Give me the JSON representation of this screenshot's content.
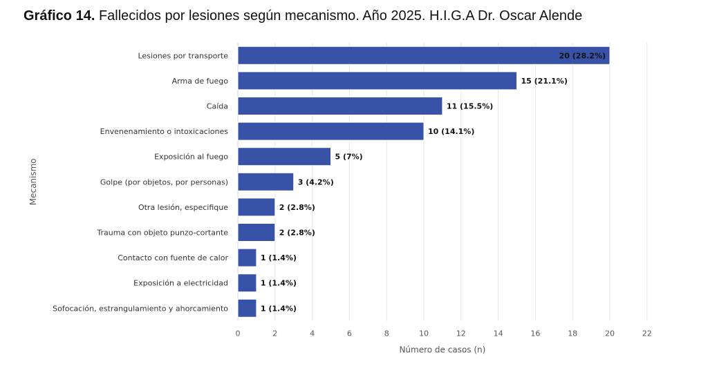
{
  "title_bold": "Gráfico 14.",
  "title_rest": " Fallecidos por lesiones según mecanismo. Año 2025. H.I.G.A Dr. Oscar Alende",
  "chart_data": {
    "type": "bar",
    "orientation": "horizontal",
    "title": "Gráfico 14. Fallecidos por lesiones según mecanismo. Año 2025. H.I.G.A Dr. Oscar Alende",
    "xlabel": "Número de casos (n)",
    "ylabel": "Mecanismo",
    "xlim": [
      0,
      22
    ],
    "xticks": [
      0,
      2,
      4,
      6,
      8,
      10,
      12,
      14,
      16,
      18,
      20,
      22
    ],
    "grid": true,
    "color": "#3752a6",
    "categories": [
      "Lesiones por transporte",
      "Arma de fuego",
      "Caída",
      "Envenenamiento o intoxicaciones",
      "Exposición al fuego",
      "Golpe (por objetos, por personas)",
      "Otra lesión, especifique",
      "Trauma con objeto punzo-cortante",
      "Contacto con fuente de calor",
      "Exposición a electricidad",
      "Sofocación, estrangulamiento y ahorcamiento"
    ],
    "values": [
      20,
      15,
      11,
      10,
      5,
      3,
      2,
      2,
      1,
      1,
      1
    ],
    "data_labels": [
      "20 (28.2%)",
      "15 (21.1%)",
      "11 (15.5%)",
      "10 (14.1%)",
      "5 (7%)",
      "3 (4.2%)",
      "2 (2.8%)",
      "2 (2.8%)",
      "1 (1.4%)",
      "1 (1.4%)",
      "1 (1.4%)"
    ]
  }
}
